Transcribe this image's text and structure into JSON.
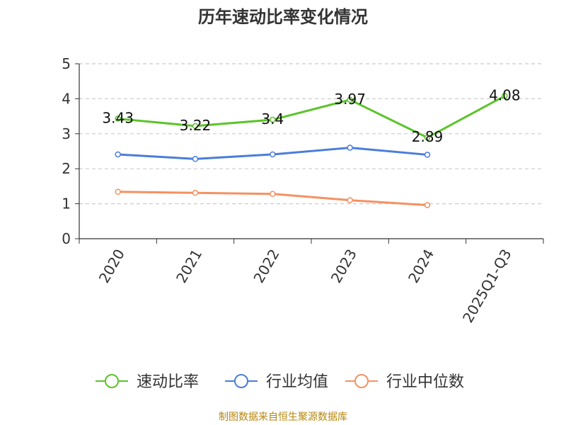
{
  "chart_data": {
    "type": "line",
    "title": "历年速动比率变化情况",
    "categories": [
      "2020",
      "2021",
      "2022",
      "2023",
      "2024",
      "2025Q1-Q3"
    ],
    "ylim": [
      0,
      5
    ],
    "yticks": [
      "0",
      "1",
      "2",
      "3",
      "4",
      "5"
    ],
    "grid": true,
    "legend_position": "bottom",
    "series": [
      {
        "name": "速动比率",
        "color": "#5BC42A",
        "values": [
          3.43,
          3.22,
          3.4,
          3.97,
          2.89,
          4.08
        ],
        "labels": [
          "3.43",
          "3.22",
          "3.4",
          "3.97",
          "2.89",
          "4.08"
        ]
      },
      {
        "name": "行业均值",
        "color": "#4A7DDB",
        "values": [
          2.41,
          2.28,
          2.41,
          2.6,
          2.4,
          null
        ]
      },
      {
        "name": "行业中位数",
        "color": "#F59162",
        "values": [
          1.34,
          1.31,
          1.28,
          1.1,
          0.96,
          null
        ]
      }
    ]
  },
  "footer": "制图数据来自恒生聚源数据库"
}
